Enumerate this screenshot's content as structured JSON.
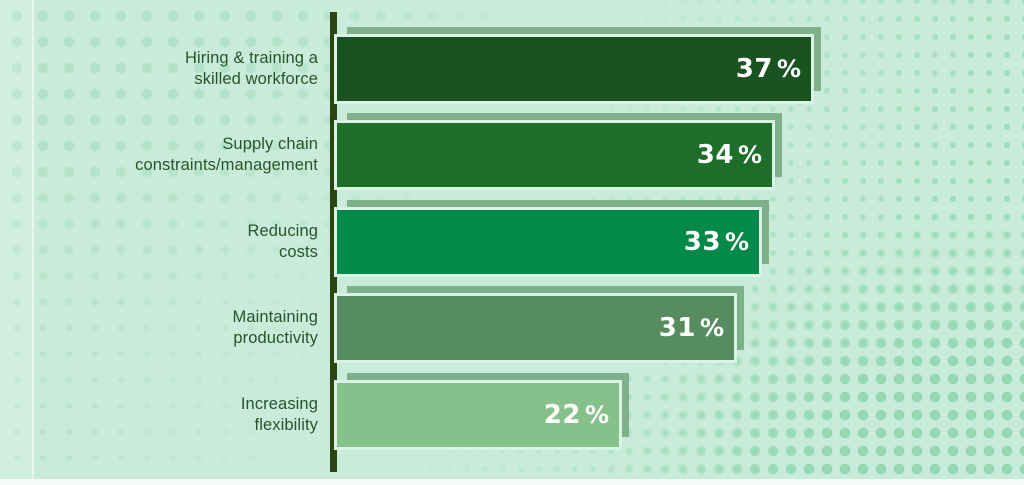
{
  "chart_data": {
    "type": "bar",
    "orientation": "horizontal",
    "title": "",
    "categories": [
      "Hiring & training a skilled workforce",
      "Supply chain constraints/management",
      "Reducing costs",
      "Maintaining productivity",
      "Increasing flexibility"
    ],
    "values": [
      37,
      34,
      33,
      31,
      22
    ],
    "value_labels": [
      "37%",
      "34%",
      "33%",
      "31%",
      "22%"
    ],
    "unit": "%",
    "xlim": [
      0,
      40
    ],
    "grid": false,
    "legend": null,
    "bar_colors": [
      "#1a5222",
      "#1c6e28",
      "#048a48",
      "#578c61",
      "#86c18b"
    ]
  },
  "bars": [
    {
      "line1": "Hiring & training a",
      "line2": "skilled workforce",
      "value": 37,
      "unit": "%",
      "color": "#1a5222"
    },
    {
      "line1": "Supply chain",
      "line2": "constraints/management",
      "value": 34,
      "unit": "%",
      "color": "#1c6e28"
    },
    {
      "line1": "Reducing",
      "line2": "costs",
      "value": 33,
      "unit": "%",
      "color": "#048a48"
    },
    {
      "line1": "Maintaining",
      "line2": "productivity",
      "value": 31,
      "unit": "%",
      "color": "#578c61"
    },
    {
      "line1": "Increasing",
      "line2": "flexibility",
      "value": 22,
      "unit": "%",
      "color": "#86c18b"
    }
  ],
  "colors": {
    "background": "#c9ecda",
    "bar_shadow_frame": "#7fb08a",
    "bar_gap_ring": "#d9f3e4",
    "axis": "#2a4512",
    "label_text": "#27542b",
    "value_text": "#ffffff",
    "dots_left": "#b4e1c9",
    "dots_right": "#93d8b3"
  }
}
